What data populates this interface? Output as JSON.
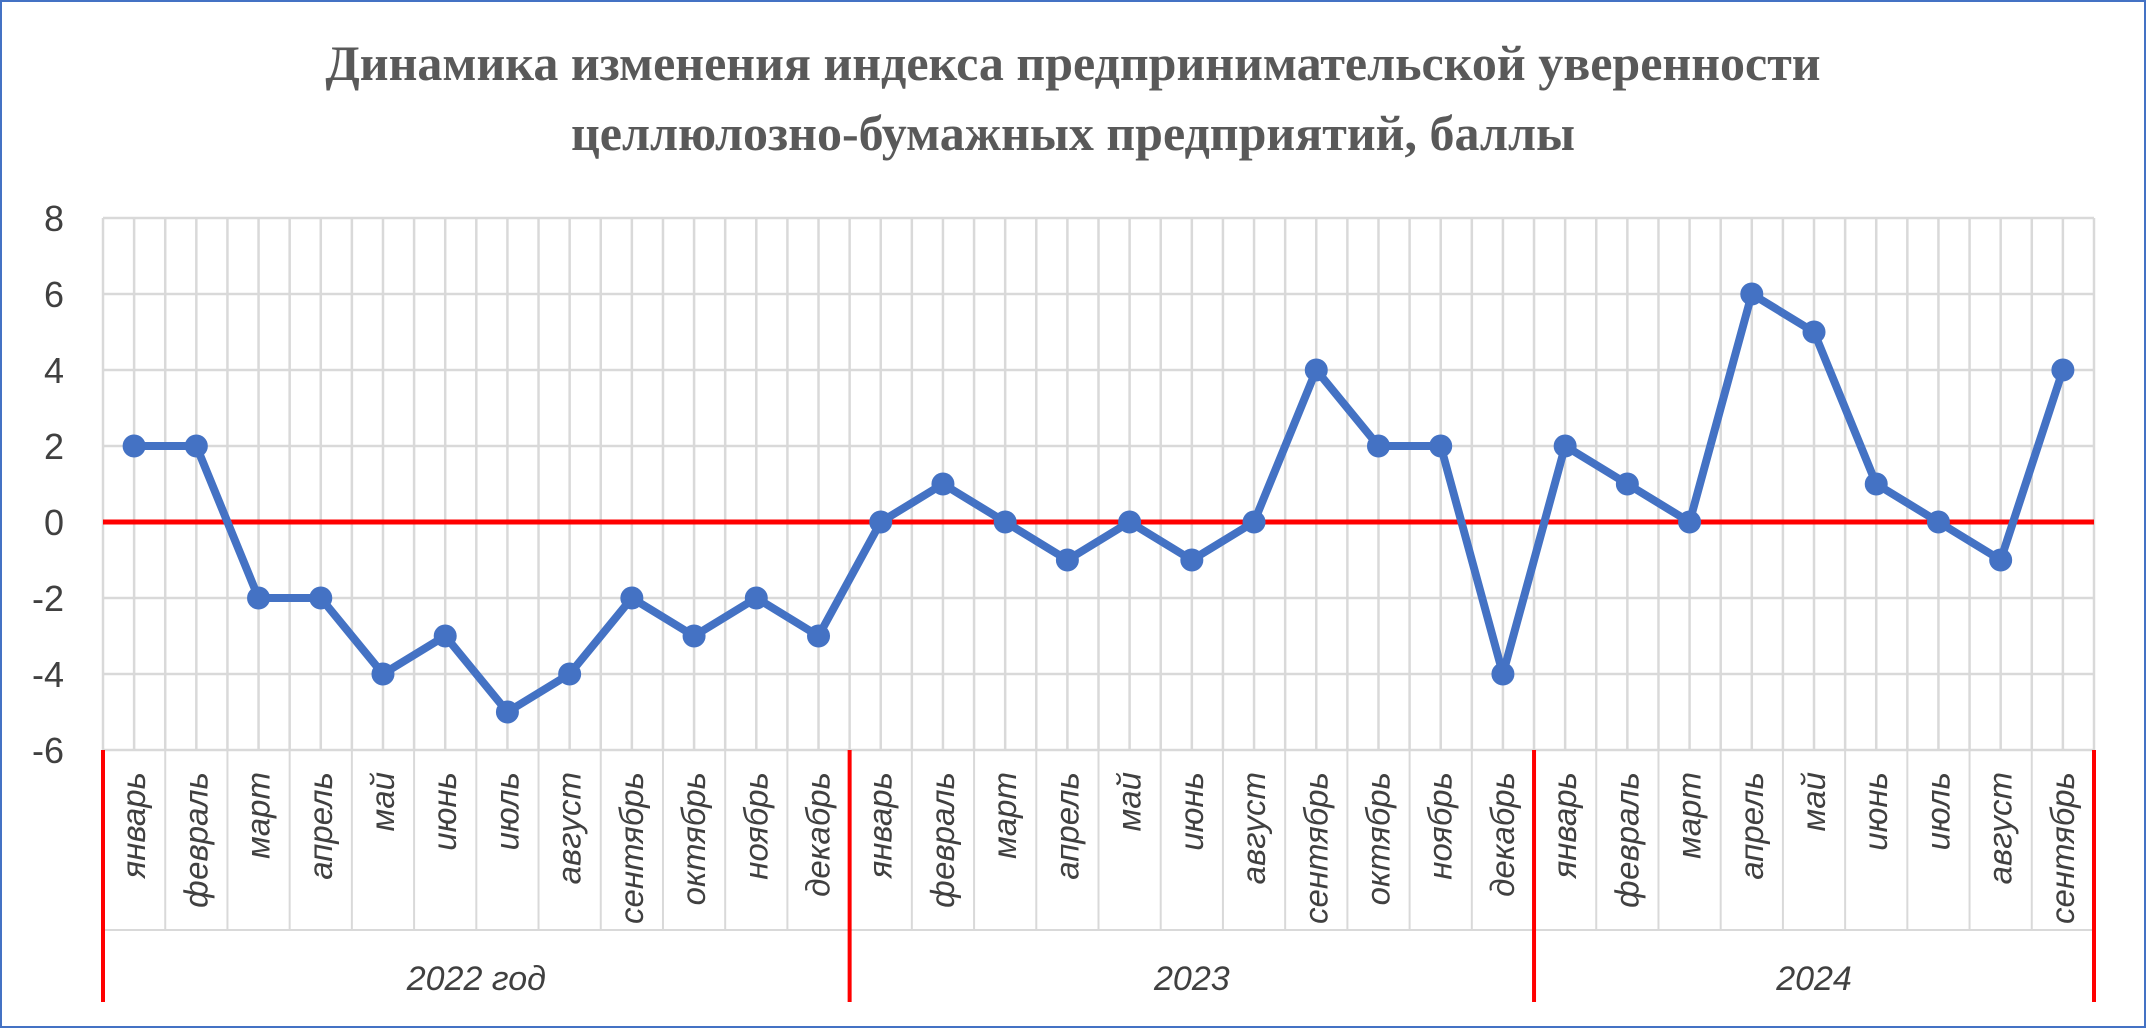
{
  "chart_data": {
    "type": "line",
    "title": [
      "Динамика изменения индекса предпринимательской уверенности",
      "целлюлозно-бумажных предприятий, баллы"
    ],
    "ylim": [
      -6,
      8
    ],
    "yticks": [
      8,
      6,
      4,
      2,
      0,
      -2,
      -4,
      -6
    ],
    "grid": true,
    "reference_line": {
      "value": 0,
      "color": "#FF0000"
    },
    "colors": {
      "series": "#4472C4",
      "grid": "#D9D9D9",
      "zero_line": "#FF0000",
      "group_divider": "#FF0000",
      "border": "#4472C4"
    },
    "categories": [
      "январь",
      "февраль",
      "март",
      "апрель",
      "май",
      "июнь",
      "июль",
      "август",
      "сентябрь",
      "октябрь",
      "ноябрь",
      "декабрь",
      "январь",
      "февраль",
      "март",
      "апрель",
      "май",
      "июнь",
      "август",
      "сентябрь",
      "октябрь",
      "ноябрь",
      "декабрь",
      "январь",
      "февраль",
      "март",
      "апрель",
      "май",
      "июнь",
      "июль",
      "август",
      "сентябрь"
    ],
    "groups": [
      {
        "label": "2022 год",
        "count": 12
      },
      {
        "label": "2023",
        "count": 11
      },
      {
        "label": "2024",
        "count": 9
      }
    ],
    "series": [
      {
        "values": [
          2,
          2,
          -2,
          -2,
          -4,
          -3,
          -5,
          -4,
          -2,
          -3,
          -2,
          -3,
          0,
          1,
          0,
          -1,
          0,
          -1,
          0,
          4,
          2,
          2,
          -4,
          2,
          1,
          0,
          6,
          5,
          1,
          0,
          -1,
          4
        ]
      }
    ]
  }
}
